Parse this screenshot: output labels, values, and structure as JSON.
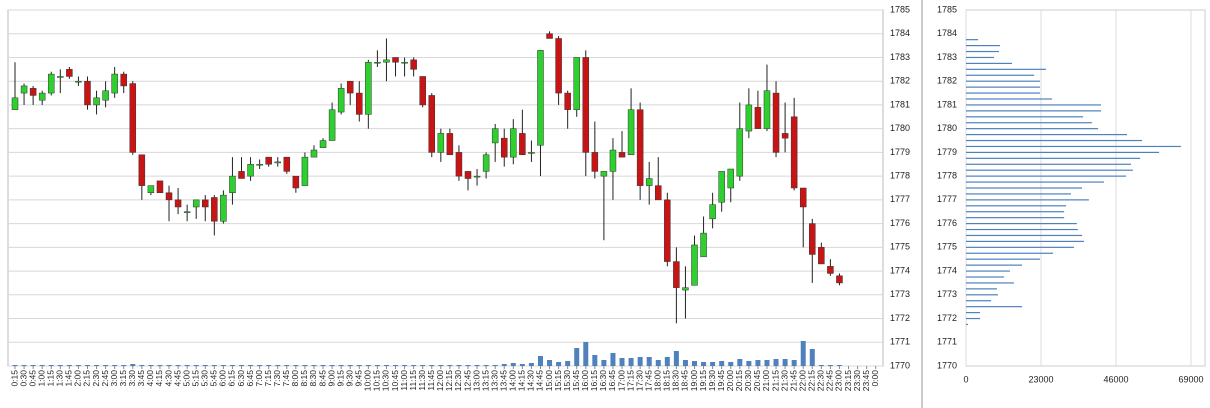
{
  "chart_data": [
    {
      "type": "candlestick",
      "categories": [
        "0:15",
        "0:30",
        "0:45",
        "1:00",
        "1:15",
        "1:30",
        "1:45",
        "2:00",
        "2:15",
        "2:30",
        "2:45",
        "3:00",
        "3:15",
        "3:30",
        "3:45",
        "4:00",
        "4:15",
        "4:30",
        "4:45",
        "5:00",
        "5:15",
        "5:30",
        "5:45",
        "6:00",
        "6:15",
        "6:30",
        "6:45",
        "7:00",
        "7:15",
        "7:30",
        "7:45",
        "8:00",
        "8:15",
        "8:30",
        "8:45",
        "9:00",
        "9:15",
        "9:30",
        "9:45",
        "10:00",
        "10:15",
        "10:30",
        "10:45",
        "11:00",
        "11:15",
        "11:30",
        "11:45",
        "12:00",
        "12:15",
        "12:30",
        "12:45",
        "13:00",
        "13:15",
        "13:30",
        "13:45",
        "14:00",
        "14:15",
        "14:30",
        "14:45",
        "15:00",
        "15:15",
        "15:30",
        "15:45",
        "16:00",
        "16:15",
        "16:30",
        "16:45",
        "17:00",
        "17:15",
        "17:30",
        "17:45",
        "18:00",
        "18:15",
        "18:30",
        "18:45",
        "19:00",
        "19:15",
        "19:30",
        "19:45",
        "20:00",
        "20:15",
        "20:30",
        "20:45",
        "21:00",
        "21:15",
        "21:30",
        "21:45",
        "22:00",
        "22:15",
        "22:30",
        "22:45",
        "23:00",
        "23:15",
        "23:30",
        "23:45",
        "0:00"
      ],
      "open": [
        1780.8,
        1781.5,
        1781.7,
        1781.2,
        1781.5,
        1782.2,
        1782.5,
        1782.0,
        1782.0,
        1781.0,
        1781.2,
        1781.5,
        1782.3,
        1781.9,
        1778.9,
        1777.3,
        1777.8,
        1777.3,
        1777.0,
        1776.5,
        1776.7,
        1777.0,
        1777.1,
        1776.1,
        1777.3,
        1778.2,
        1778.0,
        1778.5,
        1778.8,
        1778.6,
        1778.8,
        1778.0,
        1777.6,
        1778.8,
        1779.2,
        1779.5,
        1780.7,
        1782.0,
        1781.5,
        1780.6,
        1782.8,
        1782.8,
        1783.0,
        1782.8,
        1782.9,
        1782.2,
        1781.4,
        1779.0,
        1779.8,
        1779.0,
        1778.2,
        1778.0,
        1778.2,
        1779.4,
        1779.6,
        1778.8,
        1779.8,
        1779.0,
        1779.3,
        1784.0,
        1783.8,
        1781.5,
        1780.8,
        1783.0,
        1779.0,
        1778.0,
        1778.2,
        1779.0,
        1778.9,
        1780.8,
        1777.6,
        1777.6,
        1777.0,
        1774.4,
        1773.2,
        1773.4,
        1774.6,
        1776.2,
        1776.9,
        1777.5,
        1778.0,
        1779.9,
        1780.9,
        1780.0,
        1781.5,
        1779.8,
        1780.5,
        1777.5,
        1776.0,
        1775.0,
        1774.2,
        1773.8,
        null,
        null,
        null,
        null
      ],
      "high": [
        1782.8,
        1781.9,
        1781.8,
        1781.6,
        1782.4,
        1782.5,
        1782.6,
        1782.2,
        1782.2,
        1781.6,
        1782.0,
        1782.6,
        1782.4,
        1782.0,
        1778.9,
        1777.6,
        1777.8,
        1777.6,
        1777.5,
        1776.8,
        1777.0,
        1777.2,
        1777.2,
        1777.4,
        1778.8,
        1778.8,
        1778.8,
        1778.7,
        1778.8,
        1778.8,
        1778.8,
        1778.0,
        1779.0,
        1779.3,
        1779.6,
        1781.1,
        1781.9,
        1782.0,
        1782.0,
        1782.9,
        1783.3,
        1783.8,
        1783.0,
        1783.0,
        1783.0,
        1782.2,
        1781.5,
        1780.0,
        1780.0,
        1779.3,
        1778.2,
        1778.3,
        1779.0,
        1780.2,
        1780.0,
        1780.4,
        1780.8,
        1779.5,
        1783.3,
        1784.1,
        1783.9,
        1781.6,
        1783.0,
        1783.3,
        1780.3,
        1778.2,
        1779.6,
        1779.9,
        1781.7,
        1781.1,
        1778.6,
        1778.8,
        1777.3,
        1775.0,
        1774.2,
        1775.5,
        1776.3,
        1777.3,
        1778.2,
        1778.3,
        1781.1,
        1781.7,
        1781.6,
        1782.7,
        1782.0,
        1781.1,
        1781.3,
        1777.5,
        1776.2,
        1775.2,
        1774.5,
        1773.9,
        null,
        null,
        null,
        null
      ],
      "low": [
        1780.8,
        1781.0,
        1781.0,
        1781.0,
        1781.4,
        1781.5,
        1782.1,
        1781.8,
        1780.8,
        1780.6,
        1780.9,
        1781.3,
        1781.5,
        1778.9,
        1777.0,
        1777.2,
        1777.3,
        1776.1,
        1776.4,
        1776.1,
        1776.2,
        1776.1,
        1775.5,
        1776.0,
        1776.8,
        1777.9,
        1777.8,
        1778.3,
        1778.4,
        1778.4,
        1778.1,
        1777.3,
        1777.6,
        1778.8,
        1779.2,
        1779.5,
        1780.6,
        1781.0,
        1780.3,
        1780.0,
        1782.6,
        1782.0,
        1782.2,
        1782.2,
        1782.2,
        1780.9,
        1778.8,
        1778.6,
        1778.9,
        1777.8,
        1777.4,
        1777.6,
        1777.9,
        1778.6,
        1778.4,
        1778.5,
        1778.9,
        1778.6,
        1778.0,
        1783.8,
        1781.0,
        1780.0,
        1780.5,
        1778.0,
        1777.9,
        1775.3,
        1777.0,
        1778.8,
        1778.9,
        1777.0,
        1776.8,
        1777.0,
        1774.2,
        1771.8,
        1772.0,
        1773.4,
        1774.6,
        1775.8,
        1776.5,
        1776.9,
        1777.8,
        1779.6,
        1780.0,
        1779.9,
        1778.8,
        1779.0,
        1777.4,
        1775.0,
        1773.5,
        1774.3,
        1773.8,
        1773.4,
        null,
        null,
        null,
        null
      ],
      "close": [
        1781.3,
        1781.8,
        1781.4,
        1781.5,
        1782.3,
        1782.2,
        1782.2,
        1782.0,
        1781.0,
        1781.3,
        1781.6,
        1782.3,
        1781.8,
        1779.0,
        1777.6,
        1777.6,
        1777.3,
        1777.0,
        1776.7,
        1776.5,
        1777.0,
        1776.7,
        1776.1,
        1777.2,
        1778.0,
        1777.9,
        1778.5,
        1778.5,
        1778.5,
        1778.6,
        1778.2,
        1777.5,
        1778.8,
        1779.1,
        1779.5,
        1780.8,
        1781.7,
        1781.5,
        1780.6,
        1782.8,
        1782.8,
        1782.9,
        1782.8,
        1782.8,
        1782.5,
        1781.0,
        1779.0,
        1779.8,
        1778.9,
        1778.0,
        1777.9,
        1778.0,
        1778.9,
        1780.0,
        1778.8,
        1780.0,
        1778.9,
        1779.0,
        1783.3,
        1783.8,
        1781.5,
        1780.8,
        1783.0,
        1779.0,
        1778.2,
        1778.2,
        1779.1,
        1778.8,
        1780.8,
        1777.6,
        1777.9,
        1777.0,
        1774.4,
        1773.3,
        1773.3,
        1775.1,
        1775.6,
        1776.8,
        1778.2,
        1778.3,
        1780.0,
        1781.0,
        1780.0,
        1781.6,
        1779.0,
        1779.6,
        1777.5,
        1776.7,
        1774.7,
        1774.3,
        1773.9,
        1773.5,
        null,
        null,
        null,
        null
      ],
      "volume": [
        1,
        1,
        1,
        1,
        1,
        1,
        1,
        1,
        1,
        1,
        1,
        1,
        1,
        2,
        1,
        1,
        1,
        1,
        1,
        1,
        1,
        1,
        1,
        1,
        1,
        1,
        1,
        1,
        1,
        1,
        1,
        1,
        1,
        1,
        1,
        1,
        1,
        1,
        1,
        1,
        1,
        1,
        1,
        1,
        1,
        1,
        1,
        1,
        1,
        1,
        1,
        1,
        1,
        1,
        2,
        3,
        2,
        3,
        10,
        6,
        4,
        5,
        18,
        24,
        11,
        6,
        13,
        8,
        8,
        9,
        9,
        6,
        9,
        15,
        6,
        5,
        4,
        4,
        5,
        4,
        7,
        5,
        6,
        6,
        7,
        7,
        6,
        25,
        17,
        1,
        1,
        1,
        null,
        null,
        null,
        null
      ],
      "vlim": [
        0,
        100
      ],
      "ylim": [
        1770,
        1785
      ],
      "yticks": [
        1770,
        1771,
        1772,
        1773,
        1774,
        1775,
        1776,
        1777,
        1778,
        1779,
        1780,
        1781,
        1782,
        1783,
        1784,
        1785
      ],
      "up_color": "#2fcf2f",
      "down_color": "#c81414",
      "volume_color": "#4f81bd",
      "grid": true
    },
    {
      "type": "barh",
      "prices": [
        1783.75,
        1783.5,
        1783.25,
        1783.0,
        1782.75,
        1782.5,
        1782.25,
        1782.0,
        1781.75,
        1781.5,
        1781.25,
        1781.0,
        1780.75,
        1780.5,
        1780.25,
        1780.0,
        1779.75,
        1779.5,
        1779.25,
        1779.0,
        1778.75,
        1778.5,
        1778.25,
        1778.0,
        1777.75,
        1777.5,
        1777.25,
        1777.0,
        1776.75,
        1776.5,
        1776.25,
        1776.0,
        1775.75,
        1775.5,
        1775.25,
        1775.0,
        1774.75,
        1774.5,
        1774.25,
        1774.0,
        1773.75,
        1773.5,
        1773.25,
        1773.0,
        1772.75,
        1772.5,
        1772.25,
        1772.0,
        1771.75
      ],
      "values": [
        3700,
        10400,
        10100,
        8600,
        14100,
        24500,
        20900,
        22700,
        22700,
        22700,
        26400,
        41400,
        41400,
        35900,
        38600,
        40500,
        49400,
        54000,
        65900,
        59200,
        53400,
        50600,
        51200,
        49100,
        42300,
        35600,
        32200,
        37700,
        30700,
        30100,
        30100,
        34000,
        34300,
        35600,
        36200,
        33100,
        26700,
        22700,
        17200,
        13500,
        11700,
        14700,
        9500,
        9800,
        7700,
        17200,
        4300,
        4300,
        600
      ],
      "color": "#4f81bd",
      "ylim": [
        1770,
        1785
      ],
      "yticks": [
        1770,
        1771,
        1772,
        1773,
        1774,
        1775,
        1776,
        1777,
        1778,
        1779,
        1780,
        1781,
        1782,
        1783,
        1784,
        1785
      ],
      "xlim": [
        0,
        69000
      ],
      "xticks": [
        0,
        23000,
        46000,
        69000
      ],
      "grid": true
    }
  ]
}
